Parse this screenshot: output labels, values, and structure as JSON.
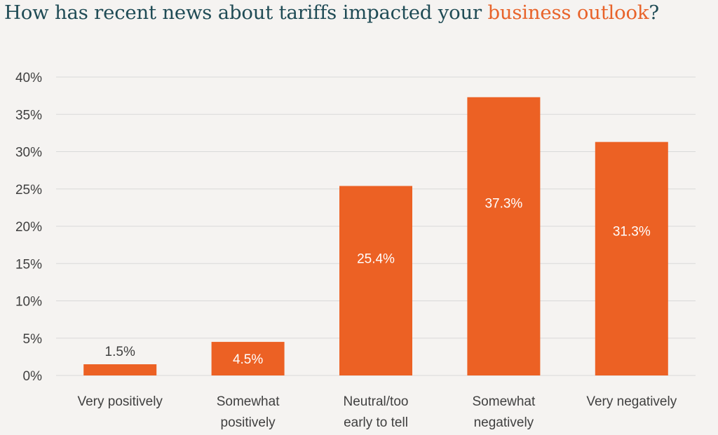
{
  "title": {
    "prefix": "How has recent news about tariffs impacted your ",
    "highlight": "business outlook",
    "suffix": "?"
  },
  "colors": {
    "bar": "#ec6124",
    "title": "#1f4b55",
    "highlight": "#e8632a",
    "grid": "#d9d9d9",
    "text": "#404040",
    "background": "#f5f3f1"
  },
  "chart_data": {
    "type": "bar",
    "categories": [
      [
        "Very positively"
      ],
      [
        "Somewhat",
        "positively"
      ],
      [
        "Neutral/too",
        "early to tell"
      ],
      [
        "Somewhat",
        "negatively"
      ],
      [
        "Very negatively"
      ]
    ],
    "values": [
      1.5,
      4.5,
      25.4,
      37.3,
      31.3
    ],
    "data_labels": [
      "1.5%",
      "4.5%",
      "25.4%",
      "37.3%",
      "31.3%"
    ],
    "yticks": [
      "0%",
      "5%",
      "10%",
      "15%",
      "20%",
      "25%",
      "30%",
      "35%",
      "40%"
    ],
    "ylim": [
      0,
      40
    ],
    "grid": true,
    "legend": false
  }
}
